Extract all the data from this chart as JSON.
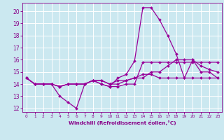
{
  "xlabel": "Windchill (Refroidissement éolien,°C)",
  "x": [
    0,
    1,
    2,
    3,
    4,
    5,
    6,
    7,
    8,
    9,
    10,
    11,
    12,
    13,
    14,
    15,
    16,
    17,
    18,
    19,
    20,
    21,
    22,
    23
  ],
  "series": [
    [
      14.5,
      14.0,
      14.0,
      14.0,
      13.0,
      12.5,
      12.0,
      14.0,
      14.3,
      14.0,
      13.8,
      14.5,
      14.8,
      15.9,
      20.3,
      20.3,
      19.3,
      18.0,
      16.5,
      14.5,
      16.0,
      15.0,
      15.0,
      14.5
    ],
    [
      14.5,
      14.0,
      14.0,
      14.0,
      13.8,
      14.0,
      14.0,
      14.0,
      14.3,
      14.0,
      13.8,
      13.8,
      14.0,
      14.0,
      15.8,
      15.8,
      15.8,
      15.8,
      15.8,
      15.8,
      15.8,
      15.8,
      15.8,
      15.8
    ],
    [
      14.5,
      14.0,
      14.0,
      14.0,
      13.8,
      14.0,
      14.0,
      14.0,
      14.3,
      14.3,
      14.0,
      14.0,
      14.3,
      14.5,
      14.5,
      15.0,
      15.0,
      15.5,
      16.0,
      16.0,
      16.0,
      15.5,
      15.2,
      15.0
    ],
    [
      14.5,
      14.0,
      14.0,
      14.0,
      13.8,
      14.0,
      14.0,
      14.0,
      14.3,
      14.3,
      14.0,
      14.3,
      14.3,
      14.5,
      14.8,
      14.8,
      14.5,
      14.5,
      14.5,
      14.5,
      14.5,
      14.5,
      14.5,
      14.5
    ]
  ],
  "line_color": "#990099",
  "marker": "D",
  "markersize": 2.0,
  "ylim": [
    11.7,
    20.7
  ],
  "yticks": [
    12,
    13,
    14,
    15,
    16,
    17,
    18,
    19,
    20
  ],
  "xticks": [
    0,
    1,
    2,
    3,
    4,
    5,
    6,
    7,
    8,
    9,
    10,
    11,
    12,
    13,
    14,
    15,
    16,
    17,
    18,
    19,
    20,
    21,
    22,
    23
  ],
  "bg_color": "#cbe8f0",
  "grid_color": "#ffffff",
  "tick_color": "#880088",
  "label_color": "#880088",
  "linewidth": 0.9
}
